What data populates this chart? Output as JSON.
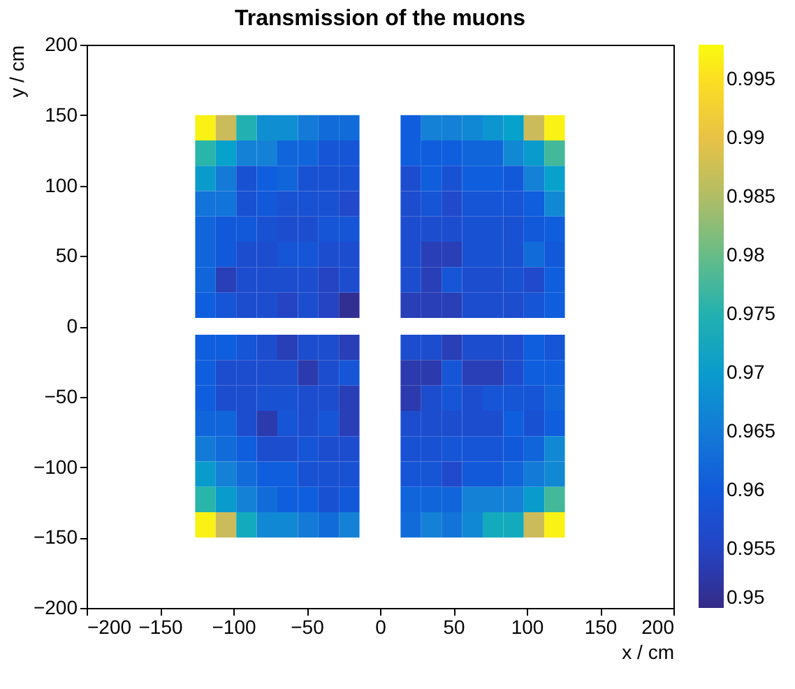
{
  "chart_data": {
    "type": "heatmap",
    "title": "Transmission of the muons",
    "xlabel": "x / cm",
    "ylabel": "y / cm",
    "x": [
      -119,
      -105,
      -91,
      -77,
      -63,
      -49,
      -35,
      -21,
      -7,
      7,
      21,
      35,
      49,
      63,
      77,
      91,
      105,
      119
    ],
    "y": [
      141,
      123,
      105,
      87,
      69,
      51,
      33,
      15,
      -15,
      -33,
      -51,
      -69,
      -87,
      -105,
      -123,
      -141
    ],
    "xlim": [
      -200,
      200
    ],
    "ylim": [
      -200,
      200
    ],
    "xticks": [
      -200,
      -150,
      -100,
      -50,
      0,
      50,
      100,
      150,
      200
    ],
    "yticks": [
      -200,
      -150,
      -100,
      -50,
      0,
      50,
      100,
      150,
      200
    ],
    "clim": [
      0.95,
      0.998
    ],
    "cticks": [
      0.95,
      0.955,
      0.96,
      0.965,
      0.97,
      0.975,
      0.98,
      0.985,
      0.99,
      0.995
    ],
    "colors": [
      "#352a87",
      "#2346c8",
      "#0f5cdd",
      "#1481d6",
      "#06a4ca",
      "#2eb7a4",
      "#87bf77",
      "#d1bb59",
      "#fec832",
      "#f9fb0e"
    ],
    "grid": false,
    "cells": [
      [
        0.997,
        0.987,
        0.975,
        0.968,
        0.968,
        0.965,
        0.963,
        0.963,
        null,
        null,
        0.961,
        0.966,
        0.966,
        0.967,
        0.969,
        0.971,
        0.987,
        0.997
      ],
      [
        0.976,
        0.971,
        0.966,
        0.966,
        0.962,
        0.962,
        0.959,
        0.959,
        null,
        null,
        0.961,
        0.961,
        0.961,
        0.962,
        0.962,
        0.967,
        0.97,
        0.978
      ],
      [
        0.97,
        0.965,
        0.958,
        0.961,
        0.962,
        0.958,
        0.958,
        0.958,
        null,
        null,
        0.957,
        0.961,
        0.958,
        0.961,
        0.961,
        0.96,
        0.966,
        0.971
      ],
      [
        0.964,
        0.964,
        0.958,
        0.96,
        0.958,
        0.958,
        0.958,
        0.956,
        null,
        null,
        0.957,
        0.959,
        0.956,
        0.959,
        0.959,
        0.959,
        0.961,
        0.967
      ],
      [
        0.962,
        0.96,
        0.96,
        0.958,
        0.957,
        0.957,
        0.959,
        0.959,
        null,
        null,
        0.957,
        0.957,
        0.957,
        0.958,
        0.958,
        0.958,
        0.96,
        0.961
      ],
      [
        0.962,
        0.96,
        0.957,
        0.957,
        0.959,
        0.959,
        0.957,
        0.957,
        null,
        null,
        0.957,
        0.954,
        0.954,
        0.958,
        0.958,
        0.958,
        0.963,
        0.96
      ],
      [
        0.962,
        0.954,
        0.957,
        0.957,
        0.957,
        0.957,
        0.955,
        0.957,
        null,
        null,
        0.957,
        0.954,
        0.959,
        0.957,
        0.957,
        0.958,
        0.956,
        0.961
      ],
      [
        0.961,
        0.959,
        0.957,
        0.957,
        0.955,
        0.957,
        0.955,
        0.951,
        null,
        null,
        0.954,
        0.954,
        0.954,
        0.957,
        0.957,
        0.957,
        0.959,
        0.961
      ],
      [
        0.961,
        0.961,
        0.959,
        0.957,
        0.954,
        0.957,
        0.957,
        0.954,
        null,
        null,
        0.957,
        0.957,
        0.954,
        0.957,
        0.957,
        0.957,
        0.961,
        0.959
      ],
      [
        0.961,
        0.957,
        0.957,
        0.957,
        0.957,
        0.953,
        0.957,
        0.959,
        null,
        null,
        0.953,
        0.953,
        0.959,
        0.954,
        0.954,
        0.957,
        0.961,
        0.961
      ],
      [
        0.961,
        0.957,
        0.957,
        0.958,
        0.958,
        0.957,
        0.957,
        0.954,
        null,
        null,
        0.953,
        0.957,
        0.959,
        0.957,
        0.959,
        0.959,
        0.959,
        0.962
      ],
      [
        0.962,
        0.962,
        0.957,
        0.953,
        0.959,
        0.957,
        0.959,
        0.954,
        null,
        null,
        0.957,
        0.957,
        0.957,
        0.957,
        0.957,
        0.961,
        0.958,
        0.961
      ],
      [
        0.965,
        0.963,
        0.961,
        0.957,
        0.957,
        0.959,
        0.957,
        0.957,
        null,
        null,
        0.958,
        0.958,
        0.959,
        0.959,
        0.959,
        0.96,
        0.962,
        0.967
      ],
      [
        0.97,
        0.966,
        0.963,
        0.961,
        0.961,
        0.958,
        0.958,
        0.958,
        null,
        null,
        0.959,
        0.959,
        0.956,
        0.96,
        0.96,
        0.962,
        0.965,
        0.967
      ],
      [
        0.976,
        0.97,
        0.966,
        0.963,
        0.961,
        0.961,
        0.958,
        0.96,
        null,
        null,
        0.962,
        0.962,
        0.962,
        0.966,
        0.966,
        0.966,
        0.97,
        0.978
      ],
      [
        0.997,
        0.987,
        0.973,
        0.967,
        0.967,
        0.965,
        0.963,
        0.966,
        null,
        null,
        0.963,
        0.966,
        0.964,
        0.967,
        0.973,
        0.973,
        0.987,
        0.997
      ]
    ]
  }
}
